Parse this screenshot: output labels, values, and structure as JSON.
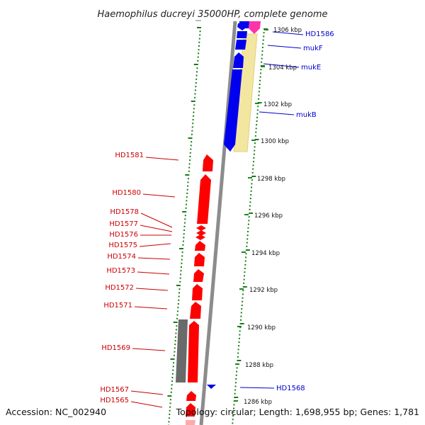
{
  "title": "Haemophilus ducreyi 35000HP, complete genome",
  "footer": {
    "accession": "Accession: NC_002940",
    "topology": "Topology: circular; Length: 1,698,955 bp; Genes: 1,781"
  },
  "colors": {
    "forward_strand": "#0000ee",
    "reverse_strand": "#ff0000",
    "pseudo": "#6a6a6a",
    "tick": "#1a7a1a",
    "kbp_tick": "#1a8a1a",
    "pink_feature": "#ff33aa",
    "yellow_feature": "#f3e6a0",
    "backbone": "#888888",
    "label_red": "#cc0000",
    "label_blue": "#0000cc"
  },
  "scale": {
    "unit": "kbp",
    "ticks": [
      {
        "label": "1306 kbp"
      },
      {
        "label": "1304 kbp"
      },
      {
        "label": "1302 kbp"
      },
      {
        "label": "1300 kbp"
      },
      {
        "label": "1298 kbp"
      },
      {
        "label": "1296 kbp"
      },
      {
        "label": "1294 kbp"
      },
      {
        "label": "1292 kbp"
      },
      {
        "label": "1290 kbp"
      },
      {
        "label": "1288 kbp"
      },
      {
        "label": "1286 kbp"
      }
    ]
  },
  "genes_left": [
    {
      "name": "HD1581"
    },
    {
      "name": "HD1580"
    },
    {
      "name": "HD1578"
    },
    {
      "name": "HD1577"
    },
    {
      "name": "HD1576"
    },
    {
      "name": "HD1575"
    },
    {
      "name": "HD1574"
    },
    {
      "name": "HD1573"
    },
    {
      "name": "HD1572"
    },
    {
      "name": "HD1571"
    },
    {
      "name": "HD1569"
    },
    {
      "name": "HD1567"
    },
    {
      "name": "HD1565"
    }
  ],
  "genes_right": [
    {
      "name": "HD1586"
    },
    {
      "name": "mukF"
    },
    {
      "name": "mukE"
    },
    {
      "name": "mukB"
    },
    {
      "name": "HD1568"
    }
  ]
}
